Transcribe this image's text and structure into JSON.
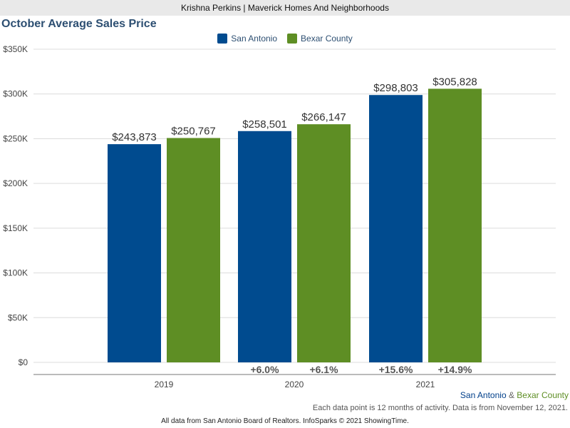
{
  "header": {
    "agent_line": "Krishna Perkins | Maverick Homes And Neighborhoods"
  },
  "colors": {
    "san_antonio": "#004b8f",
    "bexar_county": "#5e8e24",
    "title": "#2d4f72"
  },
  "chart_data": {
    "type": "bar",
    "title": "October Average Sales Price",
    "categories": [
      "2019",
      "2020",
      "2021"
    ],
    "series": [
      {
        "name": "San Antonio",
        "values": [
          243873,
          258501,
          298803
        ],
        "labels": [
          "$243,873",
          "$258,501",
          "$298,803"
        ],
        "changes": [
          "",
          "+6.0%",
          "+15.6%"
        ]
      },
      {
        "name": "Bexar County",
        "values": [
          250767,
          266147,
          305828
        ],
        "labels": [
          "$250,767",
          "$266,147",
          "$305,828"
        ],
        "changes": [
          "",
          "+6.1%",
          "+14.9%"
        ]
      }
    ],
    "ylim": [
      0,
      350000
    ],
    "yticks": [
      0,
      50000,
      100000,
      150000,
      200000,
      250000,
      300000,
      350000
    ],
    "ytick_labels": [
      "$0",
      "$50K",
      "$100K",
      "$150K",
      "$200K",
      "$250K",
      "$300K",
      "$350K"
    ],
    "grid": true,
    "legend_position": "top-center",
    "xlabel": "",
    "ylabel": ""
  },
  "caption": {
    "first": "San Antonio",
    "amp": " & ",
    "second": "Bexar County"
  },
  "note": "Each data point is 12 months of activity. Data is from November 12, 2021.",
  "footer": "All data from San Antonio Board of Realtors. InfoSparks © 2021 ShowingTime."
}
